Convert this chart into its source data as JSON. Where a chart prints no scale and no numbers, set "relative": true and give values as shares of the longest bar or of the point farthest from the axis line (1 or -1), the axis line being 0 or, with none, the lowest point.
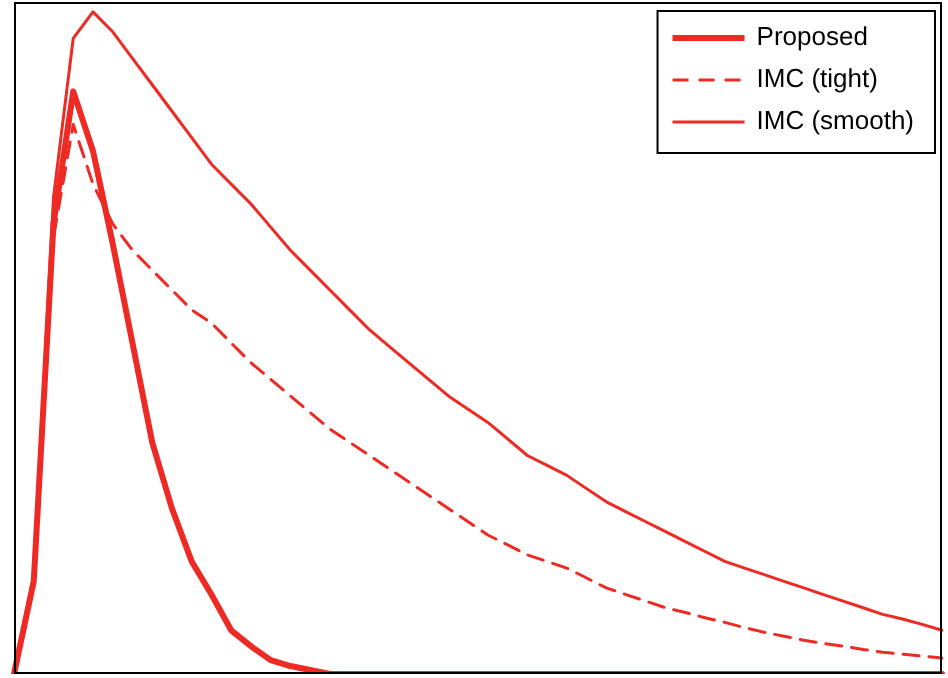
{
  "chart_data": {
    "type": "line",
    "relative": true,
    "legend": "top right",
    "grid": false,
    "marker": "none",
    "categories": [
      null,
      null,
      null,
      null,
      null,
      null,
      null,
      null,
      null,
      null,
      null,
      null,
      null,
      null,
      null,
      null,
      null,
      null,
      null,
      null,
      null,
      null,
      null,
      null,
      null,
      null,
      null,
      null,
      null,
      null,
      null,
      null,
      null,
      null,
      null,
      null,
      null,
      null,
      null,
      null,
      null,
      null,
      null,
      null,
      null,
      null,
      null,
      null
    ],
    "series": [
      {
        "name": "Proposed",
        "color": "#ee2a24",
        "line_style": "solid",
        "values": [
          0,
          0.14,
          0.68,
          0.88,
          0.79,
          0.65,
          0.5,
          0.35,
          0.25,
          0.17,
          0.12,
          0.066,
          0.042,
          0.021,
          0.012,
          0.006,
          0,
          0,
          0,
          0,
          0,
          0,
          0,
          0,
          0,
          0,
          0,
          0,
          0,
          0,
          0,
          0,
          0,
          0,
          0,
          0,
          0,
          0,
          0,
          0,
          0,
          0,
          0,
          0,
          0,
          0,
          0,
          0
        ]
      },
      {
        "name": "IMC (tight)",
        "color": "#ee2a24",
        "line_style": "dashed",
        "values": [
          0,
          0.14,
          0.66,
          0.83,
          0.74,
          0.68,
          0.64,
          0.61,
          0.58,
          0.55,
          0.53,
          0.5,
          0.47,
          0.445,
          0.42,
          0.395,
          0.37,
          0.35,
          0.33,
          0.31,
          0.29,
          0.27,
          0.25,
          0.23,
          0.21,
          0.195,
          0.18,
          0.17,
          0.16,
          0.145,
          0.13,
          0.12,
          0.11,
          0.1,
          0.093,
          0.085,
          0.078,
          0.07,
          0.063,
          0.057,
          0.051,
          0.046,
          0.042,
          0.037,
          0.033,
          0.03,
          0.027,
          0.024
        ]
      },
      {
        "name": "IMC (smooth)",
        "color": "#ee2a24",
        "line_style": "solid",
        "values": [
          0,
          0.15,
          0.72,
          0.96,
          1,
          0.97,
          0.93,
          0.89,
          0.85,
          0.81,
          0.77,
          0.74,
          0.71,
          0.675,
          0.64,
          0.61,
          0.58,
          0.55,
          0.52,
          0.495,
          0.47,
          0.445,
          0.42,
          0.4,
          0.38,
          0.355,
          0.33,
          0.315,
          0.3,
          0.28,
          0.26,
          0.245,
          0.23,
          0.215,
          0.2,
          0.185,
          0.17,
          0.16,
          0.15,
          0.14,
          0.13,
          0.12,
          0.11,
          0.1,
          0.09,
          0.083,
          0.075,
          0.066
        ]
      }
    ]
  }
}
